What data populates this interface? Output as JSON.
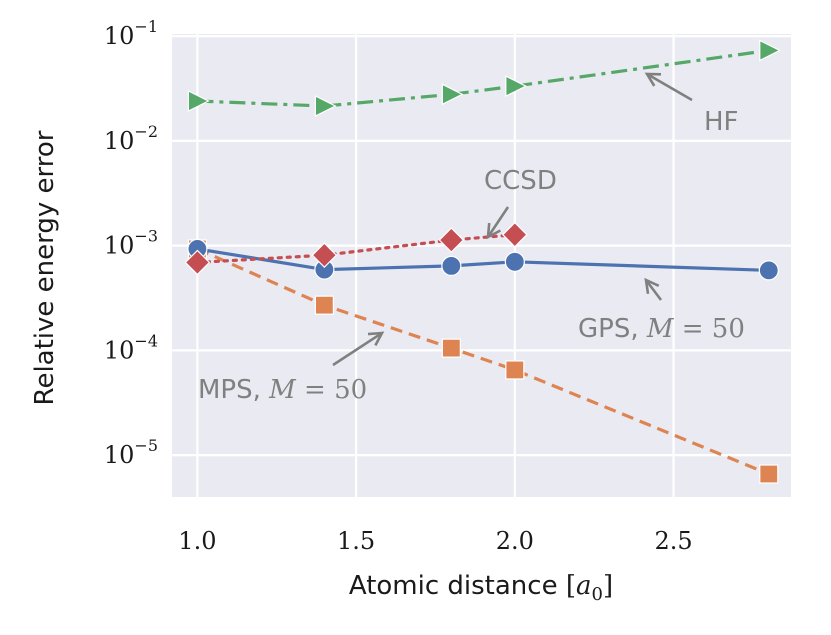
{
  "chart_data": {
    "type": "line",
    "title": "",
    "xlabel": "Atomic distance",
    "xlabel_unit_symbol": "a",
    "xlabel_unit_subscript": "0",
    "ylabel": "Relative energy error",
    "xlim": [
      0.92,
      2.87
    ],
    "ylim_log10": [
      -5.4,
      -0.98
    ],
    "yscale": "log",
    "grid": true,
    "x_ticks": [
      1.0,
      1.5,
      2.0,
      2.5
    ],
    "x_tick_labels": [
      "1.0",
      "1.5",
      "2.0",
      "2.5"
    ],
    "y_ticks_log10": [
      -1,
      -2,
      -3,
      -4,
      -5
    ],
    "y_tick_base": "10",
    "y_tick_exponents": [
      "−1",
      "−2",
      "−3",
      "−4",
      "−5"
    ],
    "series": [
      {
        "name": "GPS, M = 50",
        "color": "#4c72b0",
        "marker": "circle",
        "line": "solid",
        "x": [
          1.0,
          1.4,
          1.8,
          2.0,
          2.8
        ],
        "y": [
          0.00093,
          0.00059,
          0.00064,
          0.0007,
          0.00058
        ]
      },
      {
        "name": "MPS, M = 50",
        "color": "#dd8452",
        "marker": "square",
        "line": "dashed",
        "x": [
          1.0,
          1.4,
          1.8,
          2.0,
          2.8
        ],
        "y": [
          0.00093,
          0.00027,
          0.000105,
          6.5e-05,
          6.6e-06
        ]
      },
      {
        "name": "HF",
        "color": "#55a868",
        "marker": "triangle-right",
        "line": "dashdot",
        "x": [
          1.0,
          1.4,
          1.8,
          2.0,
          2.8
        ],
        "y": [
          0.024,
          0.0215,
          0.0278,
          0.0333,
          0.073
        ]
      },
      {
        "name": "CCSD",
        "color": "#c44e52",
        "marker": "diamond",
        "line": "dotted",
        "x": [
          1.0,
          1.4,
          1.8,
          2.0
        ],
        "y": [
          0.00069,
          0.00081,
          0.00113,
          0.00127
        ]
      }
    ],
    "annotations": [
      {
        "id": "hf",
        "text": "HF",
        "math": "",
        "rhs": ""
      },
      {
        "id": "ccsd",
        "text": "CCSD",
        "math": "",
        "rhs": ""
      },
      {
        "id": "gps",
        "text": "GPS, ",
        "math": "M",
        "rhs": " = 50"
      },
      {
        "id": "mps",
        "text": "MPS, ",
        "math": "M",
        "rhs": " = 50"
      }
    ],
    "colors": {
      "background": "#eaeaf2",
      "grid": "#ffffff",
      "annotation": "#808080"
    }
  }
}
